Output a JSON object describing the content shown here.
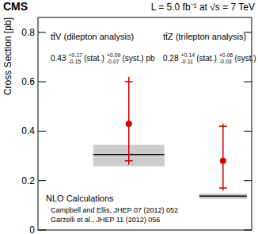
{
  "chart_data": {
    "type": "scatter",
    "title": "CMS",
    "subtitle": "L = 5.0 fb⁻¹ at √s = 7 TeV",
    "y_label": "Cross Section [pb]",
    "categories": [
      "tt̄V (dilepton analysis)",
      "tt̄Z (trilepton analysis)"
    ],
    "ylim": [
      0,
      0.86
    ],
    "yticks": [
      0,
      0.2,
      0.4,
      0.6,
      0.8
    ],
    "tick_labels": "y",
    "series": [
      {
        "name": "CMS",
        "type": "scatter",
        "color": "#d40000",
        "marker": "circle",
        "values": [
          0.43,
          0.28
        ],
        "error_plus": [
          0.19,
          0.15
        ],
        "error_minus": [
          0.165,
          0.12
        ],
        "stat_plus": [
          0.17,
          0.14
        ],
        "stat_minus": [
          0.15,
          0.11
        ],
        "annotations": [
          {
            "value": "0.43",
            "stat_up": "+0.17",
            "stat_down": "-0.15",
            "stat": "(stat.)",
            "syst_up": "+0.09",
            "syst_down": "-0.07",
            "syst": "(syst.) pb"
          },
          {
            "value": "0.28",
            "stat_up": "+0.14",
            "stat_down": "-0.11",
            "stat": "(stat.)",
            "syst_up": "+0.06",
            "syst_down": "-0.03",
            "syst": "(syst.) pb"
          }
        ]
      },
      {
        "name": "NLO Calculations",
        "type": "band",
        "color": "#000000",
        "values": [
          0.306,
          0.137
        ],
        "band_low": [
          0.258,
          0.125
        ],
        "band_high": [
          0.345,
          0.148
        ]
      }
    ],
    "references": [
      "Campbell and Ellis, JHEP 07 (2012) 052",
      "Garzelli et al., JHEP 11 (2012) 056"
    ]
  }
}
